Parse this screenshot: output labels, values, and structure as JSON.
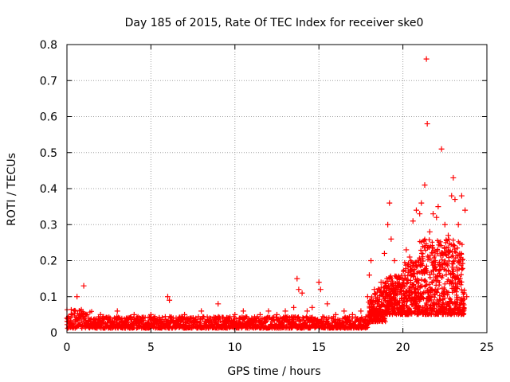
{
  "chart_data": {
    "type": "scatter",
    "title": "Day 185 of 2015, Rate Of TEC Index for receiver ske0",
    "xlabel": "GPS time / hours",
    "ylabel": "ROTI / TECUs",
    "xlim": [
      0,
      25
    ],
    "ylim": [
      0,
      0.8
    ],
    "grid": true,
    "legend": "none",
    "xticks": [
      0,
      5,
      10,
      15,
      20,
      25
    ],
    "xtick_labels": [
      "0",
      "5",
      "10",
      "15",
      "20",
      "25"
    ],
    "yticks": [
      0,
      0.1,
      0.2,
      0.3,
      0.4,
      0.5,
      0.6,
      0.7,
      0.8
    ],
    "ytick_labels": [
      "0",
      "0.1",
      "0.2",
      "0.3",
      "0.4",
      "0.5",
      "0.6",
      "0.7",
      "0.8"
    ],
    "marker": "+",
    "marker_color": "#ff0000",
    "series": [
      {
        "name": "ske0",
        "points": [
          [
            0.0,
            0.04
          ],
          [
            0.1,
            0.03
          ],
          [
            0.3,
            0.05
          ],
          [
            0.5,
            0.06
          ],
          [
            0.6,
            0.1
          ],
          [
            0.7,
            0.04
          ],
          [
            0.9,
            0.02
          ],
          [
            1.0,
            0.13
          ],
          [
            1.1,
            0.05
          ],
          [
            1.3,
            0.04
          ],
          [
            1.6,
            0.03
          ],
          [
            2.0,
            0.05
          ],
          [
            2.5,
            0.04
          ],
          [
            3.0,
            0.06
          ],
          [
            3.5,
            0.03
          ],
          [
            4.0,
            0.05
          ],
          [
            4.5,
            0.04
          ],
          [
            5.0,
            0.05
          ],
          [
            5.5,
            0.04
          ],
          [
            6.0,
            0.1
          ],
          [
            6.1,
            0.09
          ],
          [
            6.5,
            0.04
          ],
          [
            7.0,
            0.05
          ],
          [
            7.5,
            0.04
          ],
          [
            8.0,
            0.06
          ],
          [
            8.5,
            0.04
          ],
          [
            9.0,
            0.08
          ],
          [
            9.5,
            0.04
          ],
          [
            10.0,
            0.05
          ],
          [
            10.5,
            0.06
          ],
          [
            11.0,
            0.04
          ],
          [
            11.5,
            0.05
          ],
          [
            12.0,
            0.06
          ],
          [
            12.5,
            0.05
          ],
          [
            13.0,
            0.06
          ],
          [
            13.5,
            0.07
          ],
          [
            13.7,
            0.15
          ],
          [
            13.8,
            0.12
          ],
          [
            14.0,
            0.11
          ],
          [
            14.3,
            0.06
          ],
          [
            14.6,
            0.07
          ],
          [
            15.0,
            0.14
          ],
          [
            15.1,
            0.12
          ],
          [
            15.5,
            0.08
          ],
          [
            16.0,
            0.05
          ],
          [
            16.5,
            0.06
          ],
          [
            17.0,
            0.05
          ],
          [
            17.5,
            0.06
          ],
          [
            17.9,
            0.1
          ],
          [
            18.0,
            0.16
          ],
          [
            18.1,
            0.2
          ],
          [
            18.3,
            0.12
          ],
          [
            18.5,
            0.08
          ],
          [
            18.7,
            0.14
          ],
          [
            18.9,
            0.22
          ],
          [
            19.1,
            0.3
          ],
          [
            19.2,
            0.36
          ],
          [
            19.3,
            0.26
          ],
          [
            19.5,
            0.2
          ],
          [
            19.7,
            0.12
          ],
          [
            20.0,
            0.15
          ],
          [
            20.2,
            0.23
          ],
          [
            20.4,
            0.21
          ],
          [
            20.6,
            0.31
          ],
          [
            20.8,
            0.34
          ],
          [
            21.0,
            0.33
          ],
          [
            21.1,
            0.36
          ],
          [
            21.3,
            0.41
          ],
          [
            21.4,
            0.76
          ],
          [
            21.45,
            0.58
          ],
          [
            21.6,
            0.28
          ],
          [
            21.8,
            0.33
          ],
          [
            22.0,
            0.32
          ],
          [
            22.1,
            0.35
          ],
          [
            22.3,
            0.51
          ],
          [
            22.5,
            0.3
          ],
          [
            22.7,
            0.27
          ],
          [
            22.9,
            0.38
          ],
          [
            23.0,
            0.43
          ],
          [
            23.1,
            0.37
          ],
          [
            23.3,
            0.3
          ],
          [
            23.5,
            0.38
          ],
          [
            23.7,
            0.34
          ],
          [
            23.8,
            0.1
          ]
        ]
      }
    ]
  }
}
